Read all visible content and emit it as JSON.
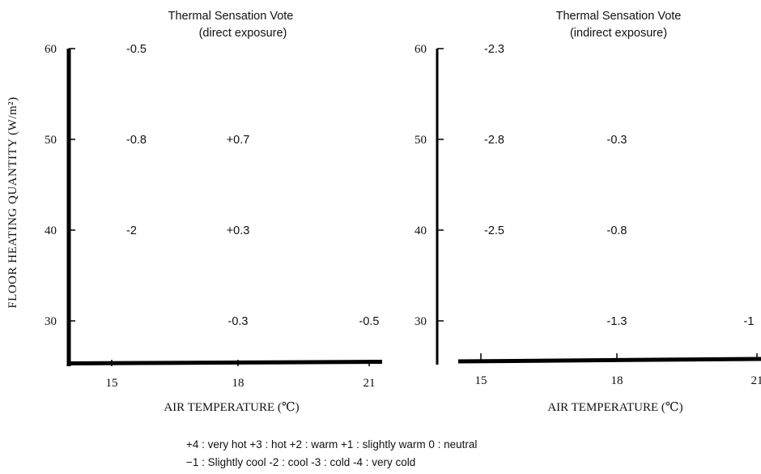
{
  "y_axis_label": "FLOOR HEATING QUANTITY (W/m²)",
  "x_axis_label": "AIR TEMPERATURE (℃)",
  "legend_lines": [
    "+4 : very hot  +3 : hot  +2 : warm  +1 : slightly warm  0 : neutral",
    "−1 : Slightly cool  -2 : cool  -3 : cold  -4 : very cold"
  ],
  "colors": {
    "ink": "#111111",
    "axis": "#000000"
  },
  "chart_data": [
    {
      "type": "table",
      "title": "Thermal Sensation Vote",
      "subtitle": "(direct exposure)",
      "xlabel": "AIR TEMPERATURE (℃)",
      "ylabel": "FLOOR HEATING QUANTITY (W/m²)",
      "x_ticks": [
        "15",
        "18",
        "21"
      ],
      "y_ticks": [
        "60",
        "50",
        "40",
        "30"
      ],
      "xlim": [
        14.5,
        21
      ],
      "ylim": [
        25,
        60
      ],
      "grid": false,
      "points": [
        {
          "x": 15,
          "y": 60,
          "label": "-0.5"
        },
        {
          "x": 15,
          "y": 50,
          "label": "-0.8"
        },
        {
          "x": 15,
          "y": 40,
          "label": "-2"
        },
        {
          "x": 18,
          "y": 50,
          "label": "+0.7"
        },
        {
          "x": 18,
          "y": 40,
          "label": "+0.3"
        },
        {
          "x": 18,
          "y": 30,
          "label": "-0.3"
        },
        {
          "x": 21,
          "y": 30,
          "label": "-0.5"
        }
      ]
    },
    {
      "type": "table",
      "title": "Thermal Sensation Vote",
      "subtitle": "(indirect exposure)",
      "xlabel": "AIR TEMPERATURE (℃)",
      "ylabel": "",
      "x_ticks": [
        "15",
        "18",
        "21"
      ],
      "y_ticks": [
        "60",
        "50",
        "40",
        "30"
      ],
      "xlim": [
        14.5,
        21
      ],
      "ylim": [
        25,
        60
      ],
      "grid": false,
      "points": [
        {
          "x": 15,
          "y": 60,
          "label": "-2.3"
        },
        {
          "x": 15,
          "y": 50,
          "label": "-2.8"
        },
        {
          "x": 15,
          "y": 40,
          "label": "-2.5"
        },
        {
          "x": 18,
          "y": 50,
          "label": "-0.3"
        },
        {
          "x": 18,
          "y": 40,
          "label": "-0.8"
        },
        {
          "x": 18,
          "y": 30,
          "label": "-1.3"
        },
        {
          "x": 21,
          "y": 30,
          "label": "-1"
        }
      ]
    }
  ]
}
